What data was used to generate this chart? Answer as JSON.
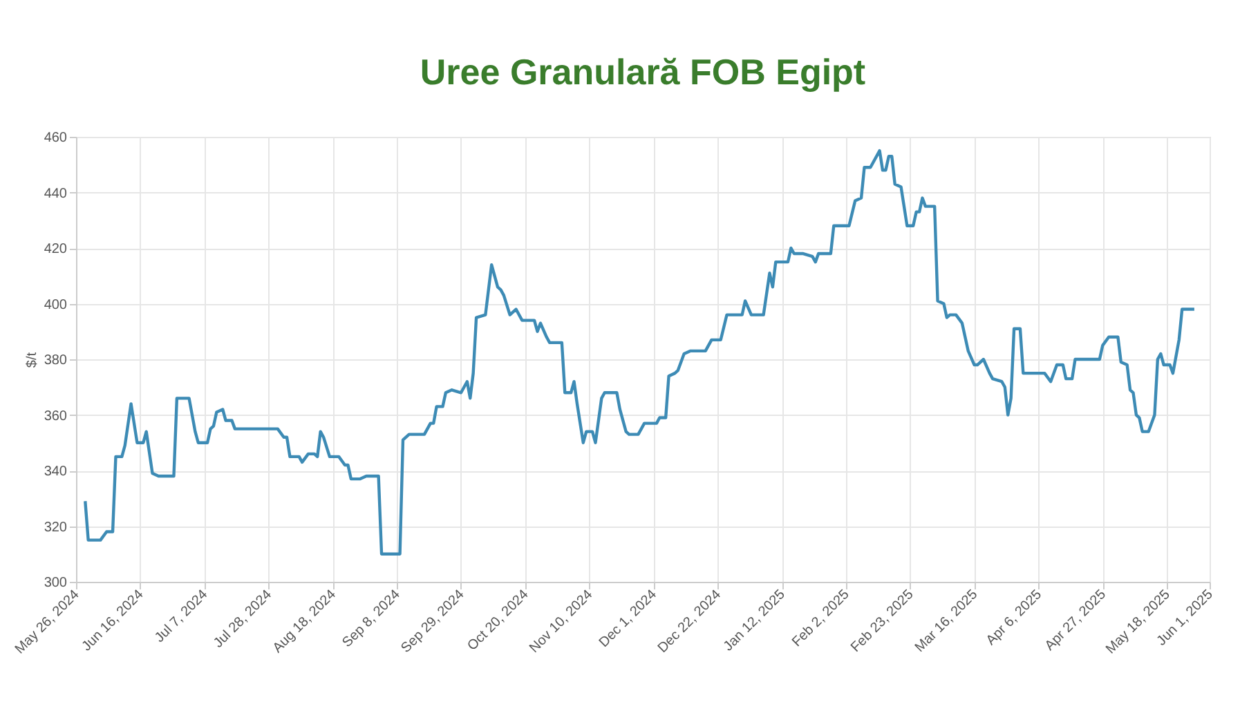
{
  "chart_data": {
    "type": "line",
    "title": "Uree Granulară FOB Egipt",
    "ylabel": "$/t",
    "grid": true,
    "marker": "none",
    "line_style": "solid",
    "xlim": [
      "2024-05-26",
      "2025-06-01"
    ],
    "ylim": [
      300,
      460
    ],
    "yticks": [
      300,
      320,
      340,
      360,
      380,
      400,
      420,
      440,
      460
    ],
    "xticks": [
      {
        "value": "2024-05-26",
        "label": "May 26, 2024"
      },
      {
        "value": "2024-06-16",
        "label": "Jun 16, 2024"
      },
      {
        "value": "2024-07-07",
        "label": "Jul 7, 2024"
      },
      {
        "value": "2024-07-28",
        "label": "Jul 28, 2024"
      },
      {
        "value": "2024-08-18",
        "label": "Aug 18, 2024"
      },
      {
        "value": "2024-09-08",
        "label": "Sep 8, 2024"
      },
      {
        "value": "2024-09-29",
        "label": "Sep 29, 2024"
      },
      {
        "value": "2024-10-20",
        "label": "Oct 20, 2024"
      },
      {
        "value": "2024-11-10",
        "label": "Nov 10, 2024"
      },
      {
        "value": "2024-12-01",
        "label": "Dec 1, 2024"
      },
      {
        "value": "2024-12-22",
        "label": "Dec 22, 2024"
      },
      {
        "value": "2025-01-12",
        "label": "Jan 12, 2025"
      },
      {
        "value": "2025-02-02",
        "label": "Feb 2, 2025"
      },
      {
        "value": "2025-02-23",
        "label": "Feb 23, 2025"
      },
      {
        "value": "2025-03-16",
        "label": "Mar 16, 2025"
      },
      {
        "value": "2025-04-06",
        "label": "Apr 6, 2025"
      },
      {
        "value": "2025-04-27",
        "label": "Apr 27, 2025"
      },
      {
        "value": "2025-05-18",
        "label": "May 18, 2025"
      },
      {
        "value": "2025-06-01",
        "label": "Jun 1, 2025"
      }
    ],
    "x": [
      "2024-05-29",
      "2024-05-30",
      "2024-06-03",
      "2024-06-05",
      "2024-06-07",
      "2024-06-08",
      "2024-06-10",
      "2024-06-11",
      "2024-06-13",
      "2024-06-15",
      "2024-06-17",
      "2024-06-18",
      "2024-06-20",
      "2024-06-22",
      "2024-06-27",
      "2024-06-28",
      "2024-07-02",
      "2024-07-04",
      "2024-07-05",
      "2024-07-08",
      "2024-07-09",
      "2024-07-10",
      "2024-07-11",
      "2024-07-13",
      "2024-07-14",
      "2024-07-16",
      "2024-07-17",
      "2024-07-31",
      "2024-08-02",
      "2024-08-03",
      "2024-08-04",
      "2024-08-07",
      "2024-08-08",
      "2024-08-10",
      "2024-08-12",
      "2024-08-13",
      "2024-08-14",
      "2024-08-15",
      "2024-08-17",
      "2024-08-20",
      "2024-08-22",
      "2024-08-23",
      "2024-08-24",
      "2024-08-27",
      "2024-08-29",
      "2024-09-02",
      "2024-09-03",
      "2024-09-09",
      "2024-09-10",
      "2024-09-11",
      "2024-09-12",
      "2024-09-17",
      "2024-09-19",
      "2024-09-20",
      "2024-09-21",
      "2024-09-23",
      "2024-09-24",
      "2024-09-26",
      "2024-09-29",
      "2024-10-01",
      "2024-10-02",
      "2024-10-03",
      "2024-10-04",
      "2024-10-07",
      "2024-10-09",
      "2024-10-11",
      "2024-10-12",
      "2024-10-13",
      "2024-10-15",
      "2024-10-17",
      "2024-10-19",
      "2024-10-23",
      "2024-10-24",
      "2024-10-25",
      "2024-10-27",
      "2024-10-28",
      "2024-11-01",
      "2024-11-02",
      "2024-11-04",
      "2024-11-05",
      "2024-11-06",
      "2024-11-08",
      "2024-11-09",
      "2024-11-11",
      "2024-11-12",
      "2024-11-14",
      "2024-11-15",
      "2024-11-19",
      "2024-11-20",
      "2024-11-22",
      "2024-11-23",
      "2024-11-26",
      "2024-11-28",
      "2024-12-02",
      "2024-12-03",
      "2024-12-05",
      "2024-12-06",
      "2024-12-08",
      "2024-12-09",
      "2024-12-11",
      "2024-12-13",
      "2024-12-18",
      "2024-12-20",
      "2024-12-23",
      "2024-12-25",
      "2024-12-30",
      "2024-12-31",
      "2025-01-02",
      "2025-01-06",
      "2025-01-08",
      "2025-01-09",
      "2025-01-10",
      "2025-01-14",
      "2025-01-15",
      "2025-01-16",
      "2025-01-19",
      "2025-01-22",
      "2025-01-23",
      "2025-01-24",
      "2025-01-28",
      "2025-01-29",
      "2025-02-03",
      "2025-02-05",
      "2025-02-07",
      "2025-02-08",
      "2025-02-10",
      "2025-02-13",
      "2025-02-14",
      "2025-02-15",
      "2025-02-16",
      "2025-02-17",
      "2025-02-18",
      "2025-02-20",
      "2025-02-22",
      "2025-02-24",
      "2025-02-25",
      "2025-02-26",
      "2025-02-27",
      "2025-02-28",
      "2025-03-03",
      "2025-03-04",
      "2025-03-06",
      "2025-03-07",
      "2025-03-08",
      "2025-03-10",
      "2025-03-12",
      "2025-03-14",
      "2025-03-16",
      "2025-03-17",
      "2025-03-19",
      "2025-03-21",
      "2025-03-22",
      "2025-03-25",
      "2025-03-26",
      "2025-03-27",
      "2025-03-28",
      "2025-03-29",
      "2025-03-31",
      "2025-04-01",
      "2025-04-08",
      "2025-04-10",
      "2025-04-12",
      "2025-04-14",
      "2025-04-15",
      "2025-04-17",
      "2025-04-18",
      "2025-04-26",
      "2025-04-27",
      "2025-04-29",
      "2025-05-02",
      "2025-05-03",
      "2025-05-05",
      "2025-05-06",
      "2025-05-07",
      "2025-05-08",
      "2025-05-09",
      "2025-05-10",
      "2025-05-12",
      "2025-05-14",
      "2025-05-15",
      "2025-05-16",
      "2025-05-17",
      "2025-05-19",
      "2025-05-20",
      "2025-05-22",
      "2025-05-23",
      "2025-05-27"
    ],
    "series": [
      {
        "color": "#3d8bb5",
        "values": [
          329,
          315,
          315,
          318,
          318,
          345,
          345,
          349,
          364,
          350,
          350,
          354,
          339,
          338,
          338,
          366,
          366,
          354,
          350,
          350,
          355,
          356,
          361,
          362,
          358,
          358,
          355,
          355,
          352,
          352,
          345,
          345,
          343,
          346,
          346,
          345,
          354,
          352,
          345,
          345,
          342,
          342,
          337,
          337,
          338,
          338,
          310,
          310,
          351,
          352,
          353,
          353,
          357,
          357,
          363,
          363,
          368,
          369,
          368,
          372,
          366,
          375,
          395,
          396,
          414,
          406,
          405,
          403,
          396,
          398,
          394,
          394,
          390,
          393,
          388,
          386,
          386,
          368,
          368,
          372,
          364,
          350,
          354,
          354,
          350,
          366,
          368,
          368,
          362,
          354,
          353,
          353,
          357,
          357,
          359,
          359,
          374,
          375,
          376,
          382,
          383,
          383,
          387,
          387,
          396,
          396,
          401,
          396,
          396,
          411,
          406,
          415,
          415,
          420,
          418,
          418,
          417,
          415,
          418,
          418,
          428,
          428,
          437,
          438,
          449,
          449,
          455,
          448,
          448,
          453,
          453,
          443,
          442,
          428,
          428,
          433,
          433,
          438,
          435,
          435,
          401,
          400,
          395,
          396,
          396,
          393,
          383,
          378,
          378,
          380,
          375,
          373,
          372,
          370,
          360,
          366,
          391,
          391,
          375,
          375,
          372,
          378,
          378,
          373,
          373,
          380,
          380,
          385,
          388,
          388,
          379,
          378,
          369,
          368,
          360,
          359,
          354,
          354,
          360,
          380,
          382,
          378,
          378,
          375,
          387,
          398,
          398
        ]
      }
    ]
  }
}
